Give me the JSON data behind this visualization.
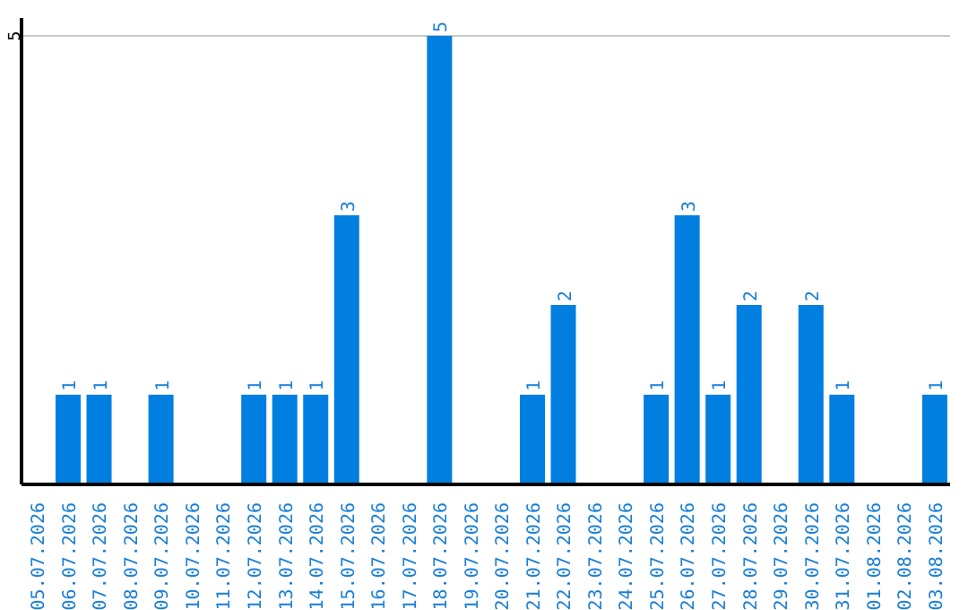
{
  "chart_data": {
    "type": "bar",
    "categories": [
      "05.07.2026",
      "06.07.2026",
      "07.07.2026",
      "08.07.2026",
      "09.07.2026",
      "10.07.2026",
      "11.07.2026",
      "12.07.2026",
      "13.07.2026",
      "14.07.2026",
      "15.07.2026",
      "16.07.2026",
      "17.07.2026",
      "18.07.2026",
      "19.07.2026",
      "20.07.2026",
      "21.07.2026",
      "22.07.2026",
      "23.07.2026",
      "24.07.2026",
      "25.07.2026",
      "26.07.2026",
      "27.07.2026",
      "28.07.2026",
      "29.07.2026",
      "30.07.2026",
      "31.07.2026",
      "01.08.2026",
      "02.08.2026",
      "03.08.2026"
    ],
    "values": [
      0,
      1,
      1,
      0,
      1,
      0,
      0,
      1,
      1,
      1,
      3,
      0,
      0,
      5,
      0,
      0,
      1,
      2,
      0,
      0,
      1,
      3,
      1,
      2,
      0,
      2,
      1,
      0,
      0,
      1
    ],
    "value_labels": [
      null,
      "1",
      "1",
      null,
      "1",
      null,
      null,
      "1",
      "1",
      "1",
      "3",
      null,
      null,
      "5",
      null,
      null,
      "1",
      "2",
      null,
      null,
      "1",
      "3",
      "1",
      "2",
      null,
      "2",
      "1",
      null,
      null,
      "1"
    ],
    "color": "#007fe0",
    "ylim": [
      0,
      5.2
    ],
    "yticks": [
      5
    ],
    "grid": "y"
  }
}
